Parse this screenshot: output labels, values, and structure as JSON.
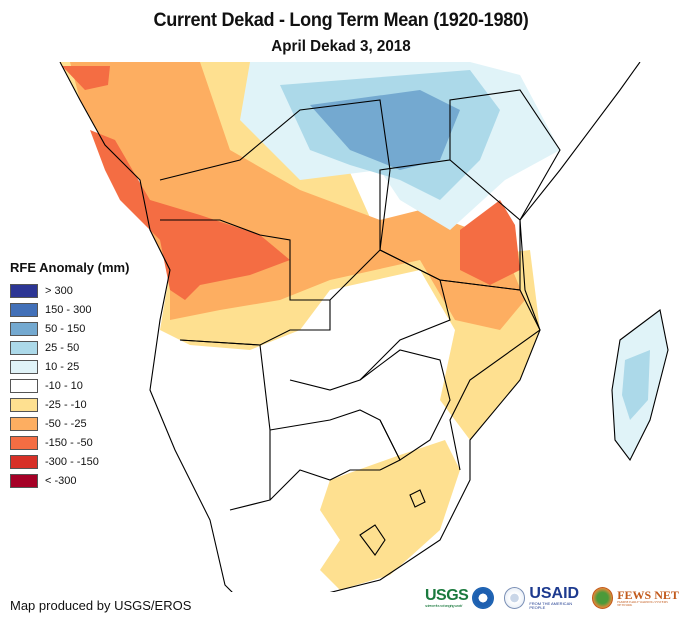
{
  "title": "Current Dekad - Long Term Mean (1920-1980)",
  "subtitle": "April Dekad 3, 2018",
  "legend": {
    "title": "RFE Anomaly (mm)",
    "items": [
      {
        "label": "> 300",
        "color": "#2c3594"
      },
      {
        "label": "150 - 300",
        "color": "#4270b8"
      },
      {
        "label": "50 - 150",
        "color": "#74a9d0"
      },
      {
        "label": "25 - 50",
        "color": "#acd9e9"
      },
      {
        "label": "10 - 25",
        "color": "#e0f3f8"
      },
      {
        "label": "-10 - 10",
        "color": "#ffffff"
      },
      {
        "label": "-25 - -10",
        "color": "#fee090"
      },
      {
        "label": "-50 - -25",
        "color": "#fdae61"
      },
      {
        "label": "-150 - -50",
        "color": "#f46d43"
      },
      {
        "label": "-300 - -150",
        "color": "#d73027"
      },
      {
        "label": "< -300",
        "color": "#a50026"
      }
    ]
  },
  "credit": "Map produced by USGS/EROS",
  "logos": {
    "usgs": "USGS",
    "usgs_tagline": "science for a changing world",
    "usaid": "USAID",
    "usaid_tagline": "FROM THE AMERICAN PEOPLE",
    "fews": "FEWS NET",
    "fews_tagline": "FAMINE EARLY WARNING SYSTEMS NETWORK"
  }
}
